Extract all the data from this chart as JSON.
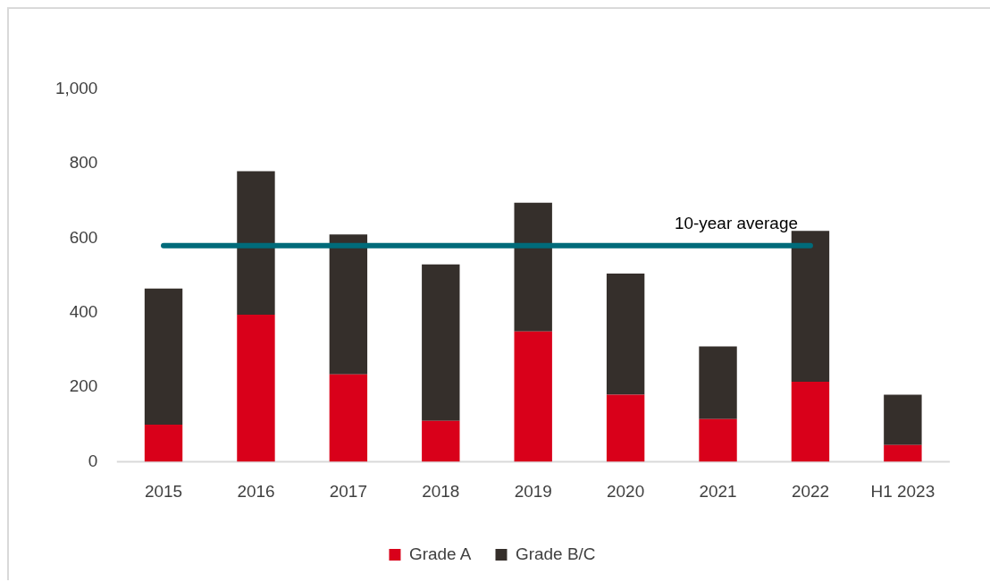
{
  "chart_data": {
    "type": "bar",
    "stacked": true,
    "categories": [
      "2015",
      "2016",
      "2017",
      "2018",
      "2019",
      "2020",
      "2021",
      "2022",
      "H1 2023"
    ],
    "series": [
      {
        "name": "Grade A",
        "color": "#d9001a",
        "values": [
          100,
          395,
          235,
          110,
          350,
          180,
          115,
          215,
          45
        ]
      },
      {
        "name": "Grade B/C",
        "color": "#352f2b",
        "values": [
          365,
          385,
          375,
          420,
          345,
          325,
          195,
          405,
          135
        ]
      }
    ],
    "ylim": [
      0,
      1000
    ],
    "yticks": [
      0,
      200,
      400,
      600,
      800,
      {
        "value": 1000,
        "label": "1,000"
      }
    ],
    "grid": false,
    "legend": "bottom",
    "ref_lines": [
      {
        "axis": "y",
        "value": 580,
        "label": "10-year average",
        "color": "#006b7a"
      }
    ]
  }
}
